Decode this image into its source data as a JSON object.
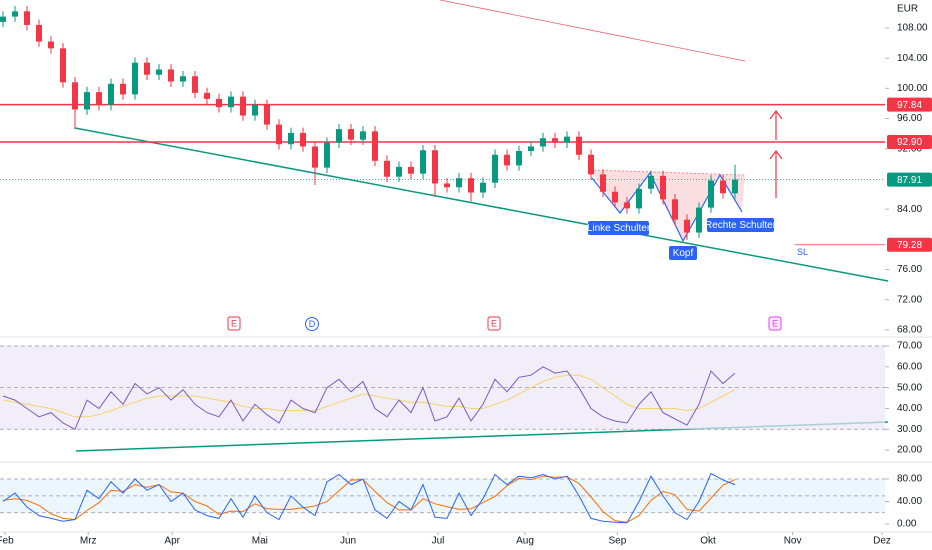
{
  "chart_data": [
    {
      "type": "candlestick",
      "currency": "EUR",
      "open": [
        108.8,
        109.5,
        110.2,
        108.4,
        106.2,
        105.3,
        100.8,
        97.2,
        99.5,
        97.8,
        100.6,
        99.2,
        103.4,
        101.8,
        102.5,
        100.9,
        101.6,
        99.4,
        98.6,
        97.5,
        98.9,
        96.4,
        97.8,
        95.2,
        92.6,
        94.1,
        92.3,
        89.5,
        92.8,
        94.6,
        93.2,
        94.3,
        90.4,
        88.3,
        89.6,
        88.7,
        91.8,
        87.4,
        86.9,
        88.1,
        86.2,
        87.5,
        91.2,
        89.8,
        91.7,
        92.3,
        93.4,
        92.8,
        93.6,
        91.2,
        88.6,
        86.3,
        84.9,
        84.1,
        86.7,
        88.4,
        85.3,
        82.6,
        80.9,
        84.2,
        87.8,
        86.1
      ],
      "high": [
        110.2,
        110.9,
        110.9,
        109.1,
        106.9,
        106.0,
        101.5,
        100.2,
        100.2,
        101.3,
        101.3,
        104.1,
        104.1,
        103.2,
        103.2,
        102.3,
        102.3,
        100.1,
        99.3,
        99.6,
        99.6,
        98.5,
        98.5,
        95.9,
        94.8,
        94.8,
        93.0,
        93.5,
        95.3,
        95.3,
        95.0,
        95.0,
        91.1,
        90.3,
        90.3,
        92.5,
        92.5,
        88.1,
        88.8,
        88.8,
        88.2,
        91.9,
        91.9,
        92.4,
        93.0,
        94.1,
        94.1,
        94.3,
        94.3,
        91.9,
        89.3,
        87.0,
        85.6,
        87.4,
        89.1,
        89.1,
        86.0,
        83.3,
        84.9,
        88.5,
        88.5,
        89.9
      ],
      "low": [
        108.1,
        108.8,
        107.7,
        105.5,
        104.6,
        100.1,
        94.6,
        96.5,
        97.1,
        97.1,
        98.5,
        98.5,
        101.1,
        101.1,
        100.2,
        100.2,
        98.7,
        97.9,
        96.8,
        96.8,
        95.7,
        95.7,
        94.5,
        91.9,
        91.9,
        91.6,
        87.2,
        88.8,
        92.1,
        92.5,
        92.5,
        89.7,
        87.6,
        87.6,
        88.0,
        88.0,
        85.6,
        86.2,
        86.2,
        85.0,
        85.5,
        86.8,
        89.1,
        89.1,
        91.0,
        91.6,
        92.1,
        92.1,
        90.5,
        87.9,
        85.6,
        84.2,
        83.4,
        83.4,
        86.0,
        84.6,
        81.9,
        79.9,
        80.2,
        83.5,
        85.4,
        85.4
      ],
      "close": [
        109.5,
        110.2,
        108.4,
        106.2,
        105.3,
        100.8,
        97.2,
        99.5,
        97.8,
        100.6,
        99.2,
        103.4,
        101.8,
        102.5,
        100.9,
        101.6,
        99.4,
        98.6,
        97.5,
        98.9,
        96.4,
        97.8,
        95.2,
        92.6,
        94.1,
        92.3,
        89.5,
        92.8,
        94.6,
        93.2,
        94.3,
        90.4,
        88.3,
        89.6,
        88.7,
        91.8,
        87.4,
        86.9,
        88.1,
        86.2,
        87.5,
        91.2,
        89.8,
        91.7,
        92.3,
        93.4,
        92.8,
        93.6,
        91.2,
        88.6,
        86.3,
        84.9,
        84.1,
        86.7,
        88.4,
        85.3,
        82.6,
        80.9,
        84.2,
        87.8,
        86.1,
        87.91
      ],
      "up_color": "#089981",
      "down_color": "#f23645",
      "xlim": [
        -0.25,
        73.5
      ],
      "ylim": [
        67.33,
        111.7
      ],
      "yticks": [
        {
          "value": 108,
          "label": "108.00"
        },
        {
          "value": 104,
          "label": "104.00"
        },
        {
          "value": 100,
          "label": "100.00"
        },
        {
          "value": 96,
          "label": "96.00"
        },
        {
          "value": 92,
          "label": "92.00"
        },
        {
          "value": 84,
          "label": "84.00"
        },
        {
          "value": 76,
          "label": "76.00"
        },
        {
          "value": 72,
          "label": "72.00"
        },
        {
          "value": 68,
          "label": "68.00"
        }
      ],
      "levels": [
        {
          "value": 97.84,
          "label": "97.84",
          "color": "#f23645"
        },
        {
          "value": 92.9,
          "label": "92.90",
          "color": "#f23645"
        },
        {
          "value": 87.91,
          "label": "87.91",
          "color": "#089981",
          "dotted": true
        },
        {
          "value": 79.28,
          "label": "79.28",
          "color": "#f23645",
          "name": "SL"
        }
      ],
      "pattern_labels": [
        "Linke Schulter",
        "Kopf",
        "Rechte Schulter"
      ],
      "events": [
        "E",
        "D",
        "E",
        "E"
      ]
    },
    {
      "type": "line",
      "xlim": [
        -0.25,
        73.5
      ],
      "ylim": [
        16.2,
        72.9
      ],
      "yticks": [
        {
          "value": 70,
          "label": "70.00"
        },
        {
          "value": 60,
          "label": "60.00"
        },
        {
          "value": 50,
          "label": "50.00"
        },
        {
          "value": 40,
          "label": "40.00"
        },
        {
          "value": 30,
          "label": "30.00"
        },
        {
          "value": 20,
          "label": "20.00"
        }
      ],
      "levels": [
        70,
        50,
        30
      ],
      "band_color": "#ede7f6",
      "series": [
        {
          "color": "#7e57c2",
          "values": [
            46,
            44,
            40,
            36,
            38,
            33,
            30,
            44,
            40,
            48,
            42,
            52,
            47,
            50,
            44,
            49,
            42,
            38,
            36,
            44,
            34,
            42,
            37,
            33,
            44,
            40,
            38,
            50,
            54,
            48,
            53,
            40,
            36,
            44,
            38,
            50,
            34,
            36,
            45,
            34,
            42,
            54,
            48,
            55,
            56,
            60,
            57,
            58,
            50,
            40,
            36,
            34,
            33,
            42,
            48,
            38,
            35,
            32,
            42,
            58,
            52,
            57
          ]
        },
        {
          "color": "#f2d46b",
          "values": [
            44,
            43,
            42,
            41,
            40,
            38,
            36,
            36,
            37,
            39,
            41,
            43,
            45,
            46,
            46,
            46,
            46,
            45,
            44,
            43,
            41,
            40,
            40,
            39,
            39,
            39,
            39,
            41,
            43,
            45,
            47,
            46,
            45,
            44,
            43,
            43,
            42,
            41,
            41,
            40,
            40,
            42,
            44,
            47,
            50,
            53,
            55,
            56,
            56,
            54,
            50,
            46,
            42,
            40,
            40,
            40,
            40,
            39,
            40,
            43,
            46,
            49
          ]
        }
      ]
    },
    {
      "type": "line",
      "xlim": [
        -0.25,
        73.5
      ],
      "ylim": [
        -14.2,
        104.9
      ],
      "yticks": [
        {
          "value": 80,
          "label": "80.00"
        },
        {
          "value": 40,
          "label": "40.00"
        },
        {
          "value": 0,
          "label": "0.00"
        }
      ],
      "levels": [
        80,
        50,
        20
      ],
      "band_color": "#e3f2fd",
      "series": [
        {
          "color": "#2962ff",
          "values": [
            40,
            55,
            30,
            15,
            10,
            5,
            8,
            60,
            45,
            75,
            55,
            80,
            60,
            70,
            40,
            55,
            25,
            15,
            10,
            45,
            12,
            50,
            20,
            8,
            50,
            30,
            15,
            75,
            88,
            70,
            80,
            25,
            10,
            40,
            25,
            70,
            12,
            10,
            55,
            15,
            45,
            88,
            70,
            85,
            82,
            88,
            80,
            85,
            50,
            10,
            5,
            3,
            2,
            40,
            85,
            50,
            20,
            8,
            40,
            90,
            78,
            70
          ]
        },
        {
          "color": "#ff6d00",
          "values": [
            42,
            45,
            42,
            33,
            18,
            10,
            8,
            24,
            38,
            60,
            58,
            70,
            65,
            70,
            57,
            55,
            40,
            32,
            17,
            23,
            22,
            36,
            27,
            26,
            26,
            29,
            32,
            40,
            59,
            78,
            79,
            58,
            38,
            25,
            25,
            45,
            36,
            31,
            26,
            27,
            38,
            49,
            68,
            81,
            79,
            85,
            83,
            84,
            72,
            48,
            22,
            6,
            3,
            15,
            42,
            58,
            52,
            26,
            23,
            46,
            69,
            79
          ]
        }
      ],
      "xticks": [
        {
          "value": 0.17,
          "label": "Feb"
        },
        {
          "value": 7.1,
          "label": "Mrz"
        },
        {
          "value": 14.1,
          "label": "Apr"
        },
        {
          "value": 21.4,
          "label": "Mai"
        },
        {
          "value": 28.75,
          "label": "Jun"
        },
        {
          "value": 36.25,
          "label": "Jul"
        },
        {
          "value": 43.5,
          "label": "Aug"
        },
        {
          "value": 51.2,
          "label": "Sep"
        },
        {
          "value": 58.75,
          "label": "Okt"
        },
        {
          "value": 65.8,
          "label": "Nov"
        },
        {
          "value": 73.25,
          "label": "Dez"
        }
      ]
    }
  ]
}
